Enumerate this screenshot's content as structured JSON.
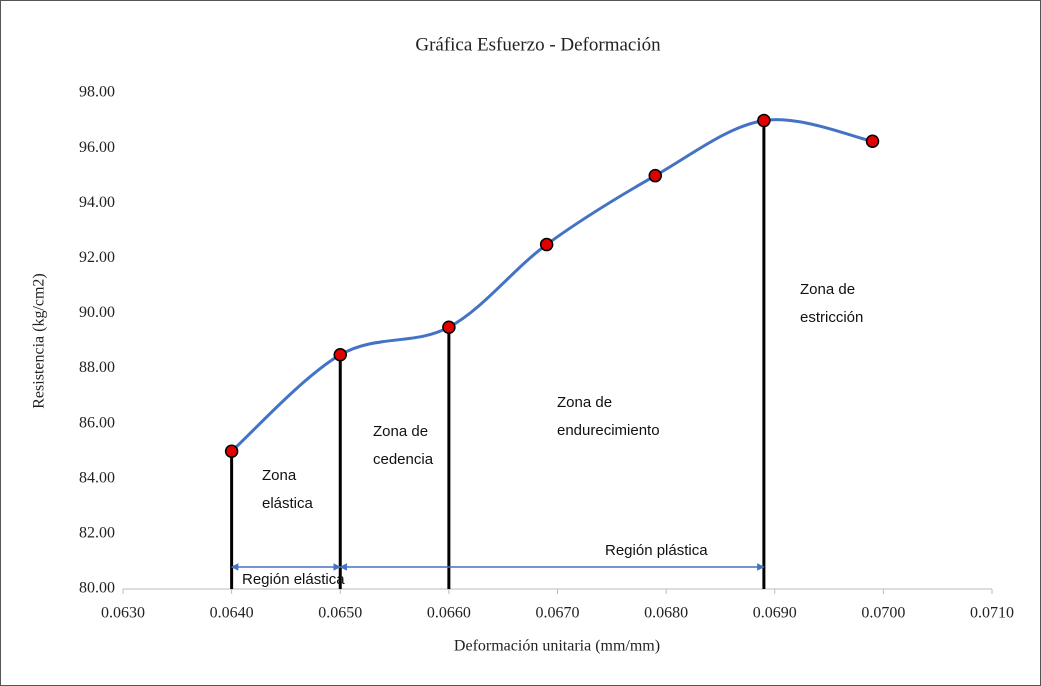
{
  "chart_data": {
    "type": "scatter_smooth",
    "title": "Gráfica Esfuerzo - Deformación",
    "x_label": "Deformación unitaria (mm/mm)",
    "y_label": "Resistencia (kg/cm2)",
    "xlim": [
      0.063,
      0.071
    ],
    "xticks": [
      {
        "value": 0.063,
        "label": "0.0630"
      },
      {
        "value": 0.064,
        "label": "0.0640"
      },
      {
        "value": 0.065,
        "label": "0.0650"
      },
      {
        "value": 0.066,
        "label": "0.0660"
      },
      {
        "value": 0.067,
        "label": "0.0670"
      },
      {
        "value": 0.068,
        "label": "0.0680"
      },
      {
        "value": 0.069,
        "label": "0.0690"
      },
      {
        "value": 0.07,
        "label": "0.0700"
      },
      {
        "value": 0.071,
        "label": "0.0710"
      }
    ],
    "ylim": [
      80,
      98
    ],
    "yticks": [
      {
        "value": 80,
        "label": "80.00"
      },
      {
        "value": 82,
        "label": "82.00"
      },
      {
        "value": 84,
        "label": "84.00"
      },
      {
        "value": 86,
        "label": "86.00"
      },
      {
        "value": 88,
        "label": "88.00"
      },
      {
        "value": 90,
        "label": "90.00"
      },
      {
        "value": 92,
        "label": "92.00"
      },
      {
        "value": 94,
        "label": "94.00"
      },
      {
        "value": 96,
        "label": "96.00"
      },
      {
        "value": 98,
        "label": "98.00"
      }
    ],
    "series": [
      {
        "color": "#4472c4",
        "marker_color": "#e00000",
        "x": [
          0.064,
          0.065,
          0.066,
          0.0669,
          0.0679,
          0.0689,
          0.0699
        ],
        "values": [
          85.0,
          88.5,
          89.5,
          92.5,
          95.0,
          97.0,
          96.25
        ],
        "drop_lines": [
          true,
          true,
          true,
          false,
          false,
          true,
          false
        ]
      }
    ],
    "arrows": [
      {
        "label": "Región elástica",
        "from": 0.064,
        "to": 0.065,
        "y": 80.8
      },
      {
        "label": "Región plástica",
        "from": 0.065,
        "to": 0.0689,
        "y": 80.8
      }
    ],
    "annotations": [
      {
        "lines": [
          "Zona",
          "elástica"
        ]
      },
      {
        "lines": [
          "Zona de",
          "cedencia"
        ]
      },
      {
        "lines": [
          "Zona de",
          "endurecimiento"
        ]
      },
      {
        "lines": [
          "Zona de",
          "estricción"
        ]
      }
    ]
  }
}
